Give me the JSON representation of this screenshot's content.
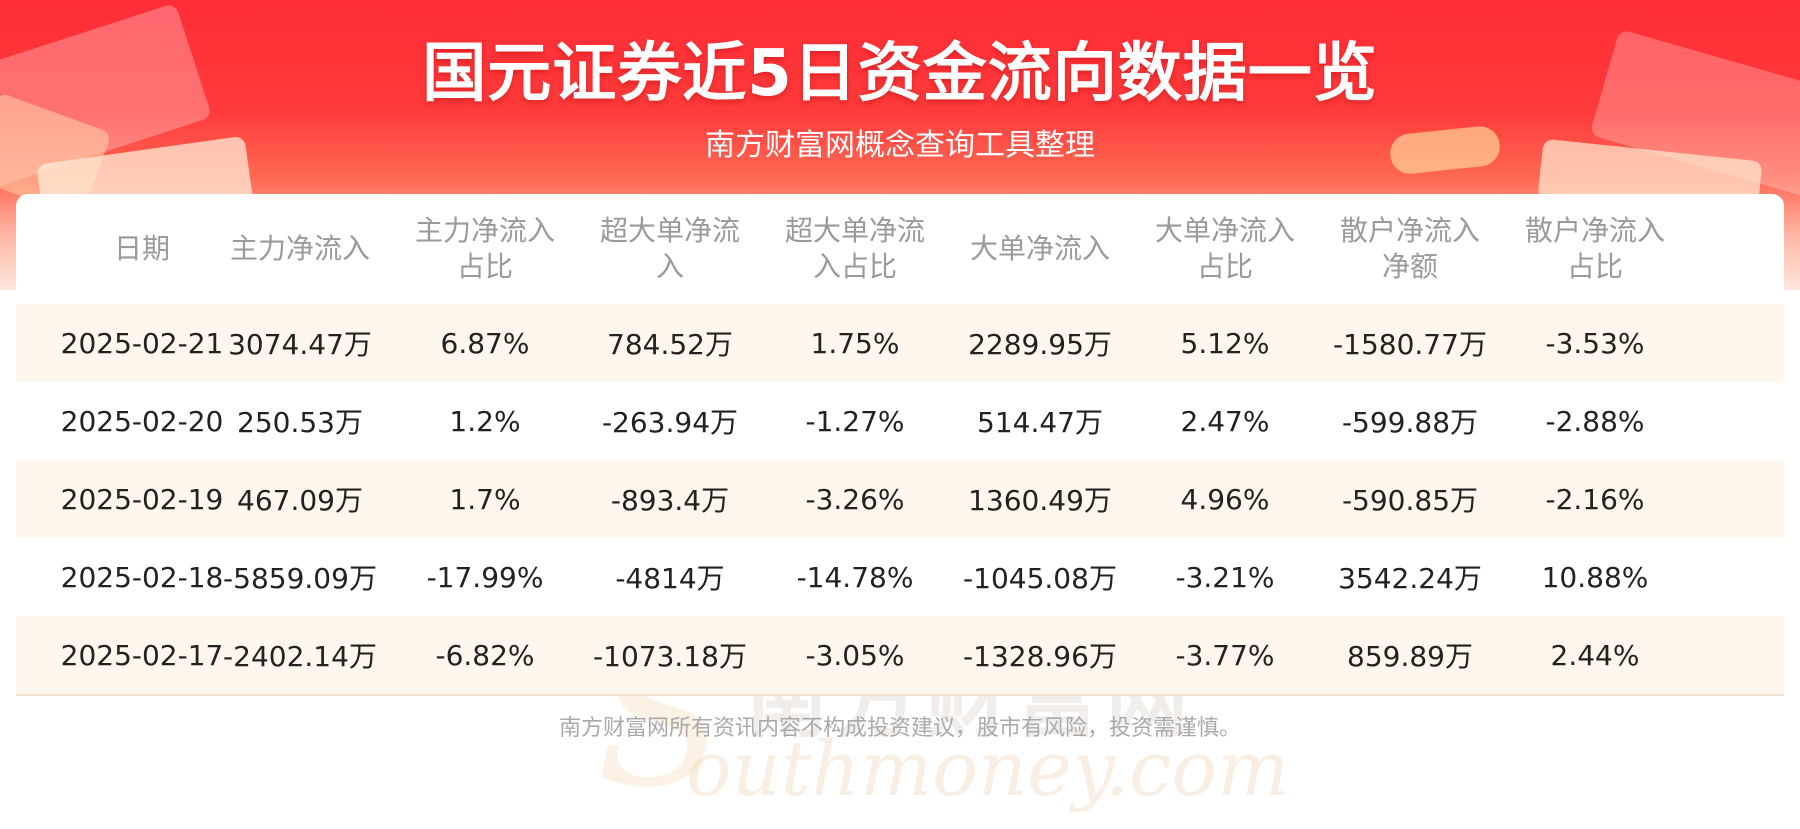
{
  "header": {
    "title": "国元证券近5日资金流向数据一览",
    "subtitle": "南方财富网概念查询工具整理"
  },
  "table": {
    "columns": [
      {
        "line1": "日期",
        "line2": ""
      },
      {
        "line1": "主力净流入",
        "line2": ""
      },
      {
        "line1": "主力净流入",
        "line2": "占比"
      },
      {
        "line1": "超大单净流",
        "line2": "入"
      },
      {
        "line1": "超大单净流",
        "line2": "入占比"
      },
      {
        "line1": "大单净流入",
        "line2": ""
      },
      {
        "line1": "大单净流入",
        "line2": "占比"
      },
      {
        "line1": "散户净流入",
        "line2": "净额"
      },
      {
        "line1": "散户净流入",
        "line2": "占比"
      }
    ],
    "rows": [
      [
        "2025-02-21",
        "3074.47万",
        "6.87%",
        "784.52万",
        "1.75%",
        "2289.95万",
        "5.12%",
        "-1580.77万",
        "-3.53%"
      ],
      [
        "2025-02-20",
        "250.53万",
        "1.2%",
        "-263.94万",
        "-1.27%",
        "514.47万",
        "2.47%",
        "-599.88万",
        "-2.88%"
      ],
      [
        "2025-02-19",
        "467.09万",
        "1.7%",
        "-893.4万",
        "-3.26%",
        "1360.49万",
        "4.96%",
        "-590.85万",
        "-2.16%"
      ],
      [
        "2025-02-18",
        "-5859.09万",
        "-17.99%",
        "-4814万",
        "-14.78%",
        "-1045.08万",
        "-3.21%",
        "3542.24万",
        "10.88%"
      ],
      [
        "2025-02-17",
        "-2402.14万",
        "-6.82%",
        "-1073.18万",
        "-3.05%",
        "-1328.96万",
        "-3.77%",
        "859.89万",
        "2.44%"
      ]
    ]
  },
  "watermark": {
    "cn": "南方财富网",
    "en": "outhmoney.com",
    "s": "S"
  },
  "footer": {
    "disclaimer": "南方财富网所有资讯内容不构成投资建议，股市有风险，投资需谨慎。"
  }
}
